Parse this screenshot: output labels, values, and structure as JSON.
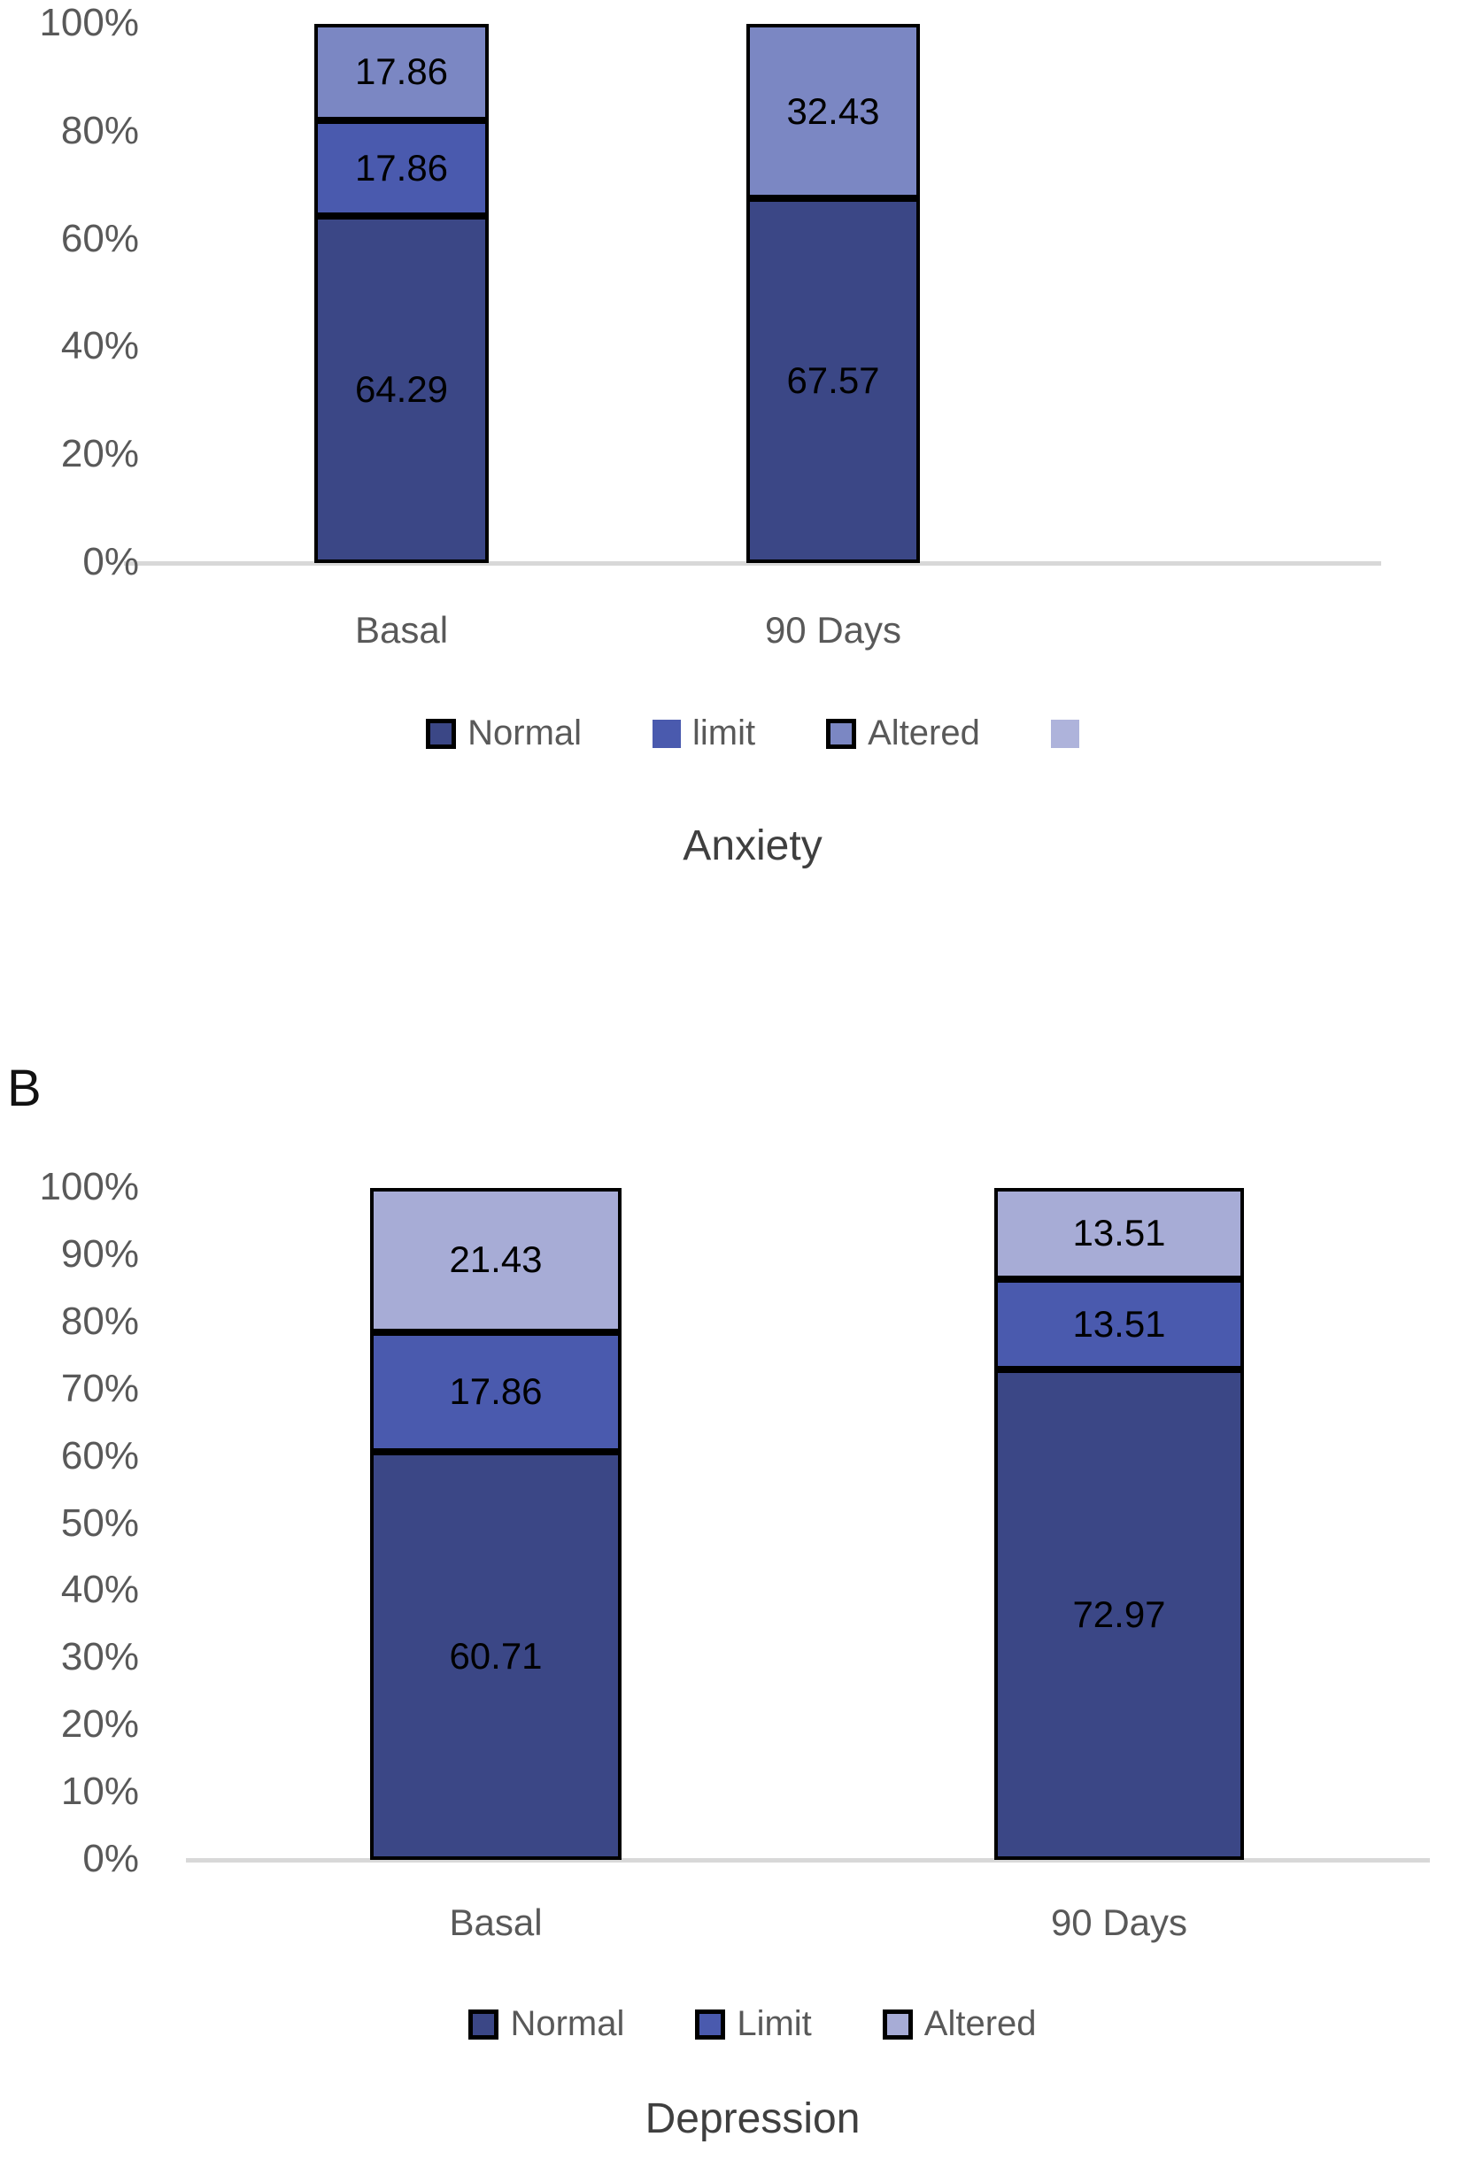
{
  "panel_b_label": "B",
  "colors": {
    "normal": "#3B4786",
    "limit": "#4A5AAE",
    "altered_anxiety": "#7B87C3",
    "altered_depression": "#A7ACD6",
    "extra_swatch": "#AEB3DB",
    "axis_line": "#D8D8D8",
    "tick_text": "#595959",
    "title_text": "#3F3F3F",
    "data_label": "#000000",
    "segment_border": "#000000"
  },
  "chart_data": [
    {
      "type": "bar",
      "stacked": true,
      "title": "Anxiety",
      "categories": [
        "Basal",
        "90 Days"
      ],
      "y_axis": {
        "range": [
          0,
          100
        ],
        "unit": "percent",
        "tick_step": 20,
        "tick_labels": [
          "100%",
          "80%",
          "60%",
          "40%",
          "20%",
          "0%"
        ]
      },
      "grid": false,
      "legend_position": "bottom",
      "series": [
        {
          "name": "Normal",
          "color": "#3B4786",
          "swatch_border": true,
          "values": [
            64.29,
            67.57
          ],
          "labels": [
            "64.29",
            "67.57"
          ]
        },
        {
          "name": "limit",
          "color": "#4A5AAE",
          "swatch_border": false,
          "values": [
            17.86,
            null
          ],
          "labels": [
            "17.86",
            null
          ]
        },
        {
          "name": "Altered",
          "color": "#7B87C3",
          "swatch_border": true,
          "values": [
            17.86,
            32.43
          ],
          "labels": [
            "17.86",
            "32.43"
          ]
        },
        {
          "name": "",
          "color": "#AEB3DB",
          "swatch_border": false,
          "values": [
            null,
            null
          ],
          "labels": [
            null,
            null
          ]
        }
      ]
    },
    {
      "type": "bar",
      "stacked": true,
      "title": "Depression",
      "categories": [
        "Basal",
        "90 Days"
      ],
      "y_axis": {
        "range": [
          0,
          100
        ],
        "unit": "percent",
        "tick_step": 10,
        "tick_labels": [
          "100%",
          "90%",
          "80%",
          "70%",
          "60%",
          "50%",
          "40%",
          "30%",
          "20%",
          "10%",
          "0%"
        ]
      },
      "grid": false,
      "legend_position": "bottom",
      "series": [
        {
          "name": "Normal",
          "color": "#3B4786",
          "swatch_border": true,
          "values": [
            60.71,
            72.97
          ],
          "labels": [
            "60.71",
            "72.97"
          ]
        },
        {
          "name": "Limit",
          "color": "#4A5AAE",
          "swatch_border": true,
          "values": [
            17.86,
            13.51
          ],
          "labels": [
            "17.86",
            "13.51"
          ]
        },
        {
          "name": "Altered",
          "color": "#A7ACD6",
          "swatch_border": true,
          "values": [
            21.43,
            13.51
          ],
          "labels": [
            "21.43",
            "13.51"
          ]
        }
      ]
    }
  ]
}
